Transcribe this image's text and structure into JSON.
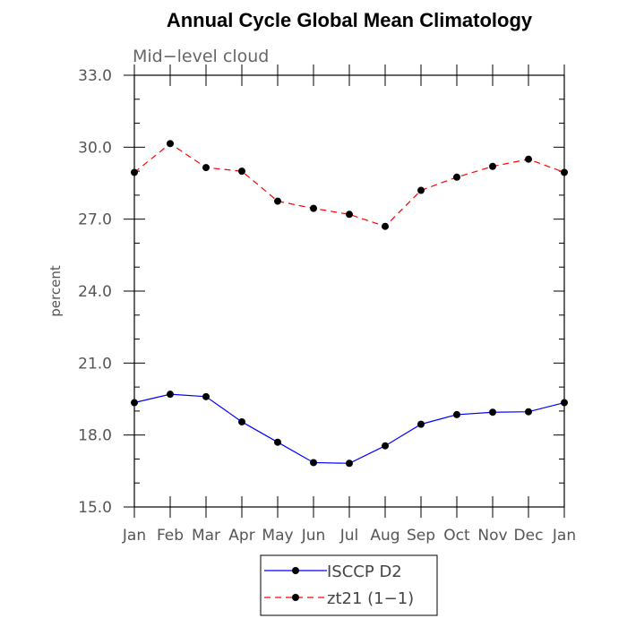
{
  "chart_data": {
    "type": "line",
    "title": "Annual Cycle Global Mean Climatology",
    "subtitle": "Mid−level cloud",
    "ylabel": "percent",
    "xlabel": "",
    "categories": [
      "Jan",
      "Feb",
      "Mar",
      "Apr",
      "May",
      "Jun",
      "Jul",
      "Aug",
      "Sep",
      "Oct",
      "Nov",
      "Dec",
      "Jan"
    ],
    "ylim": [
      15.0,
      33.0
    ],
    "yticks": [
      15.0,
      18.0,
      21.0,
      24.0,
      27.0,
      30.0,
      33.0
    ],
    "ytick_labels": [
      "15.0",
      "18.0",
      "21.0",
      "24.0",
      "27.0",
      "30.0",
      "33.0"
    ],
    "legend_position": "bottom",
    "series": [
      {
        "name": "ISCCP D2",
        "color": "#0000ff",
        "dash": "solid",
        "values": [
          19.35,
          19.7,
          19.6,
          18.55,
          17.7,
          16.85,
          16.82,
          17.55,
          18.45,
          18.85,
          18.95,
          18.97,
          19.35
        ]
      },
      {
        "name": "zt21 (1−1)",
        "color": "#ff0000",
        "dash": "dashed",
        "values": [
          28.95,
          30.15,
          29.15,
          29.0,
          27.75,
          27.45,
          27.2,
          26.7,
          28.2,
          28.75,
          29.2,
          29.5,
          28.95
        ]
      }
    ]
  }
}
